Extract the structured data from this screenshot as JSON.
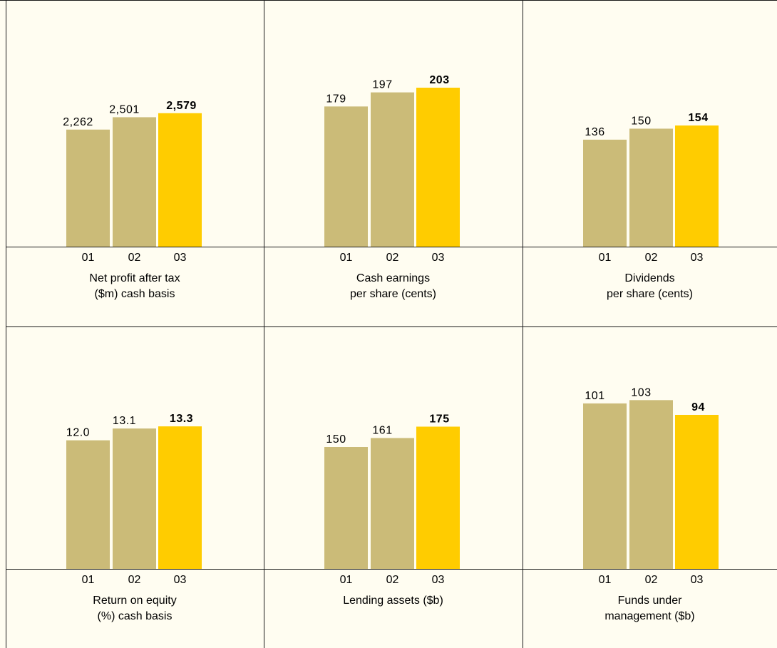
{
  "colors": {
    "background": "#fffdf1",
    "prior_bar": "#cbbb78",
    "current_bar": "#ffcc00",
    "lines": "#1a1a1a"
  },
  "chart_data": [
    {
      "type": "bar",
      "title": "Net profit after tax\n($m) cash basis",
      "title_lines": [
        "Net profit after tax",
        "($m) cash basis"
      ],
      "categories": [
        "01",
        "02",
        "03"
      ],
      "values": [
        2262,
        2501,
        2579
      ],
      "value_labels": [
        "2,262",
        "2,501",
        "2,579"
      ],
      "highlight_index": 2
    },
    {
      "type": "bar",
      "title": "Cash earnings\nper share (cents)",
      "title_lines": [
        "Cash earnings",
        "per share (cents)"
      ],
      "categories": [
        "01",
        "02",
        "03"
      ],
      "values": [
        179,
        197,
        203
      ],
      "value_labels": [
        "179",
        "197",
        "203"
      ],
      "highlight_index": 2
    },
    {
      "type": "bar",
      "title": "Dividends\nper share (cents)",
      "title_lines": [
        "Dividends",
        "per share (cents)"
      ],
      "categories": [
        "01",
        "02",
        "03"
      ],
      "values": [
        136,
        150,
        154
      ],
      "value_labels": [
        "136",
        "150",
        "154"
      ],
      "highlight_index": 2
    },
    {
      "type": "bar",
      "title": "Return on equity\n(%) cash basis",
      "title_lines": [
        "Return on equity",
        "(%) cash basis"
      ],
      "categories": [
        "01",
        "02",
        "03"
      ],
      "values": [
        12.0,
        13.1,
        13.3
      ],
      "value_labels": [
        "12.0",
        "13.1",
        "13.3"
      ],
      "highlight_index": 2
    },
    {
      "type": "bar",
      "title": "Lending assets ($b)",
      "title_lines": [
        "Lending assets ($b)"
      ],
      "categories": [
        "01",
        "02",
        "03"
      ],
      "values": [
        150,
        161,
        175
      ],
      "value_labels": [
        "150",
        "161",
        "175"
      ],
      "highlight_index": 2
    },
    {
      "type": "bar",
      "title": "Funds under\nmanagement ($b)",
      "title_lines": [
        "Funds under",
        "management ($b)"
      ],
      "categories": [
        "01",
        "02",
        "03"
      ],
      "values": [
        101,
        103,
        94
      ],
      "value_labels": [
        "101",
        "103",
        "94"
      ],
      "highlight_index": 2
    }
  ]
}
